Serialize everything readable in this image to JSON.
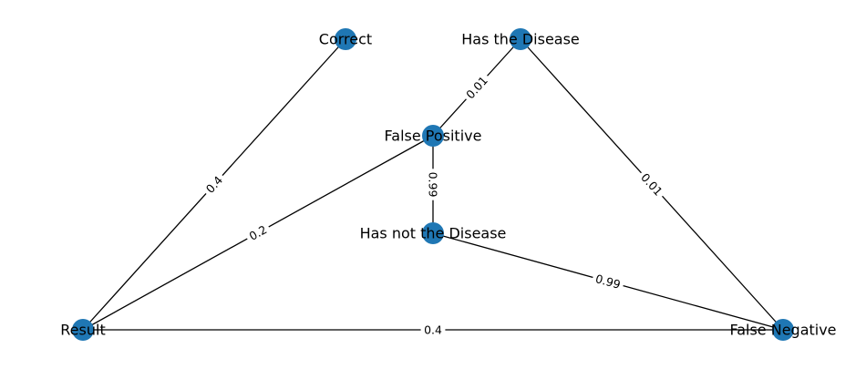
{
  "colors": {
    "node": "#1f77b4",
    "edge": "#000000",
    "background": "#ffffff"
  },
  "nodes": [
    {
      "id": "correct",
      "label": "Correct"
    },
    {
      "id": "has",
      "label": "Has the Disease"
    },
    {
      "id": "fp",
      "label": "False Positive"
    },
    {
      "id": "hasnot",
      "label": "Has not the Disease"
    },
    {
      "id": "result",
      "label": "Result"
    },
    {
      "id": "fn",
      "label": "False Negative"
    }
  ],
  "edges": [
    {
      "from": "result",
      "to": "correct",
      "label": "0.4"
    },
    {
      "from": "result",
      "to": "fp",
      "label": "0.2"
    },
    {
      "from": "result",
      "to": "fn",
      "label": "0.4"
    },
    {
      "from": "has",
      "to": "fp",
      "label": "0.01"
    },
    {
      "from": "has",
      "to": "fn",
      "label": "0.01"
    },
    {
      "from": "fp",
      "to": "hasnot",
      "label": "0.99"
    },
    {
      "from": "hasnot",
      "to": "fn",
      "label": "0.99"
    }
  ]
}
